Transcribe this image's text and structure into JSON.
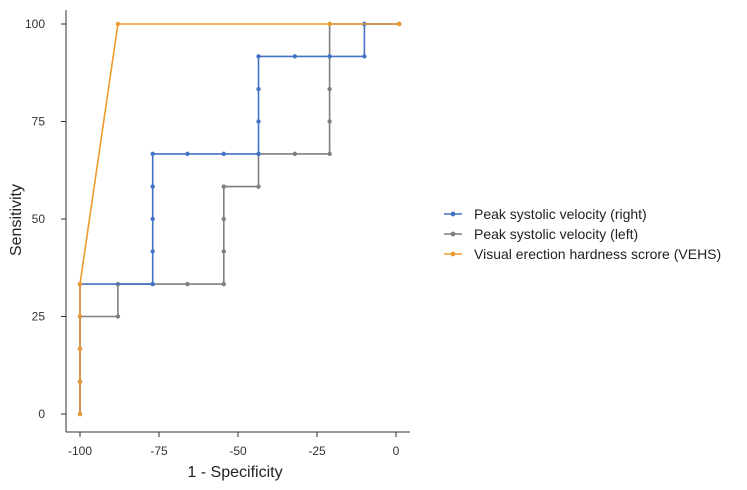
{
  "chart_data": {
    "type": "line",
    "title": "",
    "xlabel": "1 - Specificity",
    "ylabel": "Sensitivity",
    "xlim": [
      -100,
      0
    ],
    "ylim": [
      0,
      100
    ],
    "x_ticks": [
      -100,
      -75,
      -50,
      -25,
      0
    ],
    "y_ticks": [
      0,
      25,
      50,
      75,
      100
    ],
    "x_tick_labels": [
      "-100",
      "-75",
      "-50",
      "-25",
      "0"
    ],
    "y_tick_labels": [
      "0",
      "25",
      "50",
      "75",
      "100"
    ],
    "grid": false,
    "legend_position": "right",
    "series": [
      {
        "name": "Peak systolic velocity (right)",
        "color": "#4472C4",
        "x": [
          -100,
          -100,
          -100,
          -100,
          -100,
          -77,
          -77,
          -77,
          -77,
          -77,
          -66,
          -54.5,
          -43.5,
          -43.5,
          -43.5,
          -43.5,
          -32,
          -21,
          -10,
          -10,
          1
        ],
        "y": [
          0,
          8.3,
          16.7,
          25,
          33.3,
          33.3,
          41.7,
          50,
          58.3,
          66.7,
          66.7,
          66.7,
          66.7,
          75,
          83.3,
          91.7,
          91.7,
          91.7,
          91.7,
          100,
          100
        ]
      },
      {
        "name": "Peak systolic velocity (left)",
        "color": "#7F7F7F",
        "x": [
          -100,
          -100,
          -100,
          -100,
          -88,
          -88,
          -77,
          -66,
          -54.5,
          -54.5,
          -54.5,
          -54.5,
          -43.5,
          -43.5,
          -32,
          -21,
          -21,
          -21,
          -21,
          -21,
          -10,
          1
        ],
        "y": [
          0,
          8.3,
          16.7,
          25,
          25,
          33.3,
          33.3,
          33.3,
          33.3,
          41.7,
          50,
          58.3,
          58.3,
          66.7,
          66.7,
          66.7,
          75,
          83.3,
          91.7,
          100,
          100,
          100
        ]
      },
      {
        "name": "Visual erection hardness scrore (VEHS)",
        "color": "#ED9A2E",
        "x": [
          -100,
          -100,
          -100,
          -100,
          -100,
          -88,
          -21,
          1
        ],
        "y": [
          0,
          8.3,
          16.7,
          25,
          33.3,
          100,
          100,
          100
        ]
      }
    ]
  }
}
